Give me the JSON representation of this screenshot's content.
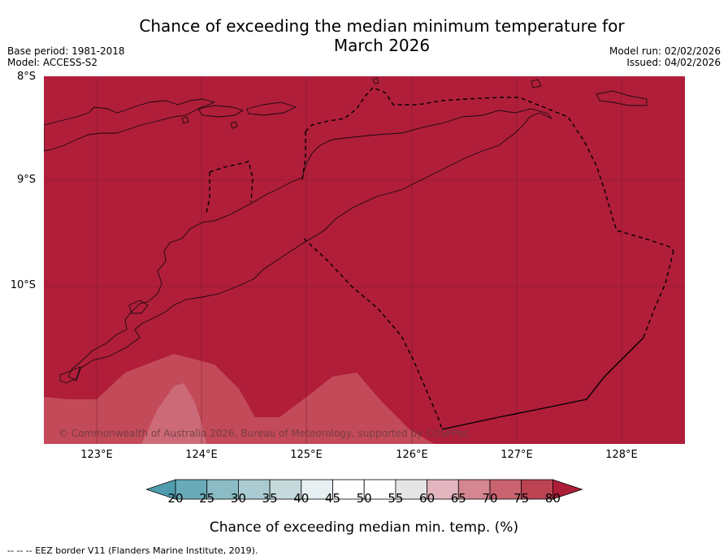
{
  "header": {
    "title_line1": "Chance of exceeding the median minimum temperature for",
    "title_line2": "March 2026",
    "base_period": "Base period: 1981-2018",
    "model": "Model: ACCESS-S2",
    "model_run": "Model run: 02/02/2026",
    "issued": "Issued: 04/02/2026"
  },
  "axes": {
    "lat_labels": [
      "8°S",
      "9°S",
      "10°S"
    ],
    "lon_labels": [
      "123°E",
      "124°E",
      "125°E",
      "126°E",
      "127°E",
      "128°E"
    ]
  },
  "colorbar": {
    "ticks": [
      "20",
      "25",
      "30",
      "35",
      "40",
      "45",
      "50",
      "55",
      "60",
      "65",
      "70",
      "75",
      "80"
    ],
    "colors": [
      "#4e9cad",
      "#69abb9",
      "#8bbcc6",
      "#a9cbd1",
      "#c6d9dc",
      "#e6eff1",
      "#ffffff",
      "#ffffff",
      "#e5e5e5",
      "#e3b6bf",
      "#d58691",
      "#c9636f",
      "#bb4352",
      "#ad1e38"
    ],
    "title": "Chance of exceeding median min. temp. (%)"
  },
  "map": {
    "base_color": "#b01e3a",
    "band_75_color": "#c34a58",
    "band_70_color": "#cc6b77",
    "copyright": "© Commonwealth of Australia 2026, Bureau of Meteorology, supported by COSPPac"
  },
  "footer": {
    "legend_text": "--  --  -- EEZ border V11 (Flanders Marine Institute, 2019)."
  }
}
